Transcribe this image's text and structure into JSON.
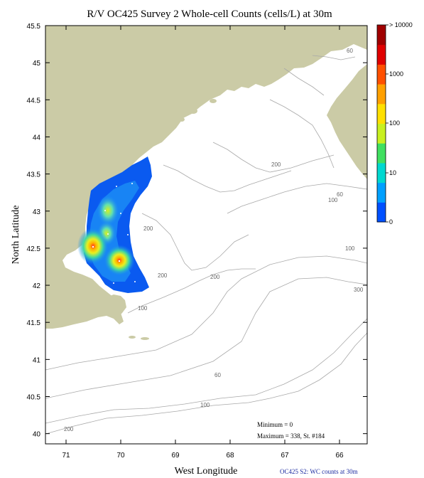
{
  "title": "R/V OC425 Survey 2 Whole-cell Counts (cells/L) at 30m",
  "xlabel": "West Longitude",
  "ylabel": "North Latitude",
  "x_ticks": [
    "71",
    "70",
    "69",
    "68",
    "67",
    "66"
  ],
  "y_ticks": [
    "45.5",
    "45",
    "44.5",
    "44",
    "43.5",
    "43",
    "42.5",
    "42",
    "41.5",
    "41",
    "40.5",
    "40"
  ],
  "colorbar": {
    "ticks": [
      "0",
      "10",
      "100",
      "1000",
      "> 10000"
    ],
    "colors": [
      "#0050ff",
      "#00a0ff",
      "#00d8d0",
      "#40e060",
      "#c8f020",
      "#ffe000",
      "#ffa000",
      "#ff5000",
      "#e00000",
      "#a00000"
    ]
  },
  "stats": {
    "minimum": "Minimum = 0",
    "maximum": "Maximum = 338, St. #184"
  },
  "credit": "OC425  S2: WC counts at 30m",
  "contour_labels": [
    "60",
    "100",
    "200",
    "200",
    "200",
    "200",
    "100",
    "100",
    "60",
    "300",
    "60",
    "100",
    "200"
  ],
  "colors": {
    "land": "#cbcba6",
    "contour": "#a8a8a8",
    "low_count": "#0a5af0",
    "high_count": "#ff2020"
  }
}
